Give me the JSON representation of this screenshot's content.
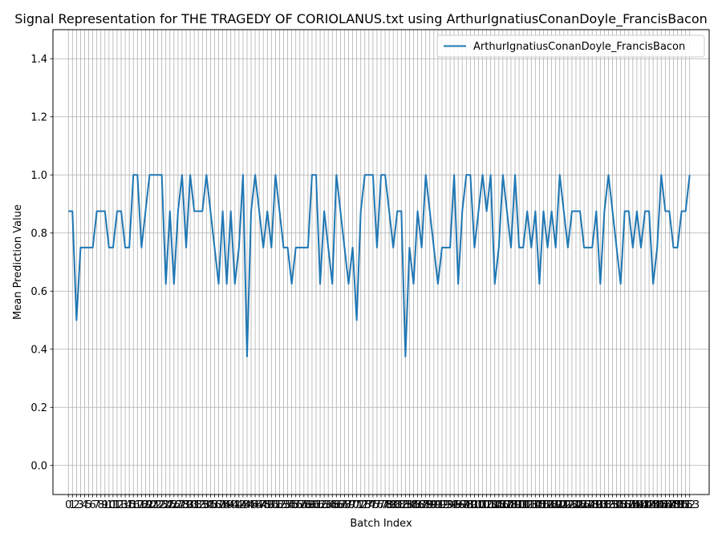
{
  "chart_data": {
    "type": "line",
    "title": "Signal Representation for THE TRAGEDY OF CORIOLANUS.txt using ArthurIgnatiusConanDoyle_FrancisBacon",
    "xlabel": "Batch Index",
    "ylabel": "Mean Prediction Value",
    "xlim": [
      -3.8,
      157.8
    ],
    "ylim": [
      -0.1,
      1.5
    ],
    "yticks": [
      0.0,
      0.2,
      0.4,
      0.6,
      0.8,
      1.0,
      1.2,
      1.4
    ],
    "grid": true,
    "legend_position": "top-right",
    "series": [
      {
        "name": "ArthurIgnatiusConanDoyle_FrancisBacon",
        "color": "#1f77b4",
        "values": [
          0.875,
          0.875,
          0.5,
          0.75,
          0.75,
          0.75,
          0.75,
          0.875,
          0.875,
          0.875,
          0.75,
          0.75,
          0.875,
          0.875,
          0.75,
          0.75,
          1.0,
          1.0,
          0.75,
          0.875,
          1.0,
          1.0,
          1.0,
          1.0,
          0.625,
          0.875,
          0.625,
          0.875,
          1.0,
          0.75,
          1.0,
          0.875,
          0.875,
          0.875,
          1.0,
          0.875,
          0.75,
          0.625,
          0.875,
          0.625,
          0.875,
          0.625,
          0.75,
          1.0,
          0.375,
          0.875,
          1.0,
          0.875,
          0.75,
          0.875,
          0.75,
          1.0,
          0.875,
          0.75,
          0.75,
          0.625,
          0.75,
          0.75,
          0.75,
          0.75,
          1.0,
          1.0,
          0.625,
          0.875,
          0.75,
          0.625,
          1.0,
          0.875,
          0.75,
          0.625,
          0.75,
          0.5,
          0.875,
          1.0,
          1.0,
          1.0,
          0.75,
          1.0,
          1.0,
          0.875,
          0.75,
          0.875,
          0.875,
          0.375,
          0.75,
          0.625,
          0.875,
          0.75,
          1.0,
          0.875,
          0.75,
          0.625,
          0.75,
          0.75,
          0.75,
          1.0,
          0.625,
          0.875,
          1.0,
          1.0,
          0.75,
          0.875,
          1.0,
          0.875,
          1.0,
          0.625,
          0.75,
          1.0,
          0.875,
          0.75,
          1.0,
          0.75,
          0.75,
          0.875,
          0.75,
          0.875,
          0.625,
          0.875,
          0.75,
          0.875,
          0.75,
          1.0,
          0.875,
          0.75,
          0.875,
          0.875,
          0.875,
          0.75,
          0.75,
          0.75,
          0.875,
          0.625,
          0.875,
          1.0,
          0.875,
          0.75,
          0.625,
          0.875,
          0.875,
          0.75,
          0.875,
          0.75,
          0.875,
          0.875,
          0.625,
          0.75,
          1.0,
          0.875,
          0.875,
          0.75,
          0.75,
          0.875,
          0.875,
          1.0
        ]
      }
    ]
  }
}
